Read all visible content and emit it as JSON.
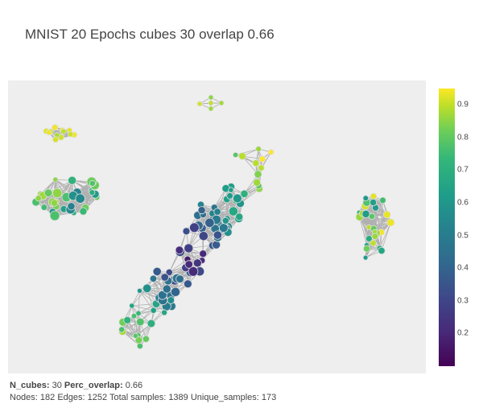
{
  "chart_data": {
    "type": "network",
    "title": "MNIST 20 Epochs cubes 30 overlap 0.66",
    "colorscale": "viridis",
    "colorbar": {
      "range": [
        0.1,
        0.95
      ],
      "ticks": [
        "0.9",
        "0.8",
        "0.7",
        "0.6",
        "0.5",
        "0.4",
        "0.3",
        "0.2"
      ]
    },
    "node_color": "#e0e0e0",
    "edge_color": "#b0b0b0",
    "components": [
      {
        "name": "top-small",
        "nodes": 5,
        "color_value": 0.85
      },
      {
        "name": "upper-left",
        "nodes": 12,
        "color_value": 0.82
      },
      {
        "name": "left",
        "nodes": 33,
        "color_value": 0.65
      },
      {
        "name": "main",
        "nodes": 104,
        "color_value": 0.35
      },
      {
        "name": "right",
        "nodes": 28,
        "color_value": 0.75
      }
    ]
  },
  "footer": {
    "line1_label": "N_cubes:",
    "line1_ncubes": "30",
    "line1_overlap_label": "Perc_overlap:",
    "line1_overlap": "0.66",
    "line2": "Nodes: 182 Edges: 1252 Total samples: 1389 Unique_samples: 173"
  }
}
